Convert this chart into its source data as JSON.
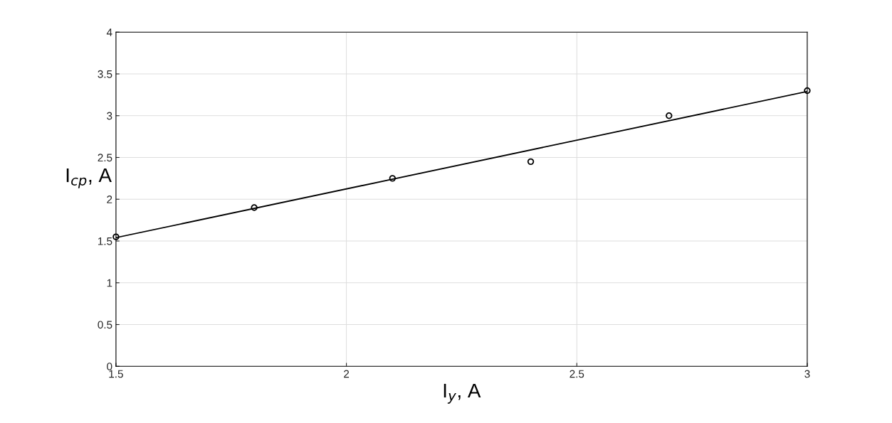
{
  "chart_data": {
    "type": "scatter",
    "xlabel": "I$_{y}$, A",
    "ylabel": "I$_{cp}$, A",
    "xlim": [
      1.5,
      3
    ],
    "xticks": [
      1.5,
      2,
      2.5,
      3
    ],
    "ylim": [
      0,
      4
    ],
    "yticks": [
      0,
      0.5,
      1,
      1.5,
      2,
      2.5,
      3,
      3.5,
      4
    ],
    "grid": true,
    "legend": false,
    "series": [
      {
        "marker": "circle",
        "color": "#000000",
        "x": [
          1.5,
          1.8,
          2.1,
          2.4,
          2.7,
          3.0
        ],
        "values": [
          1.55,
          1.9,
          2.25,
          2.45,
          3.0,
          3.3
        ]
      },
      {
        "type": "line",
        "marker": "none",
        "line_style": "solid",
        "color": "#000000",
        "x": [
          1.5,
          3.0
        ],
        "values": [
          1.54,
          3.29
        ]
      }
    ]
  }
}
